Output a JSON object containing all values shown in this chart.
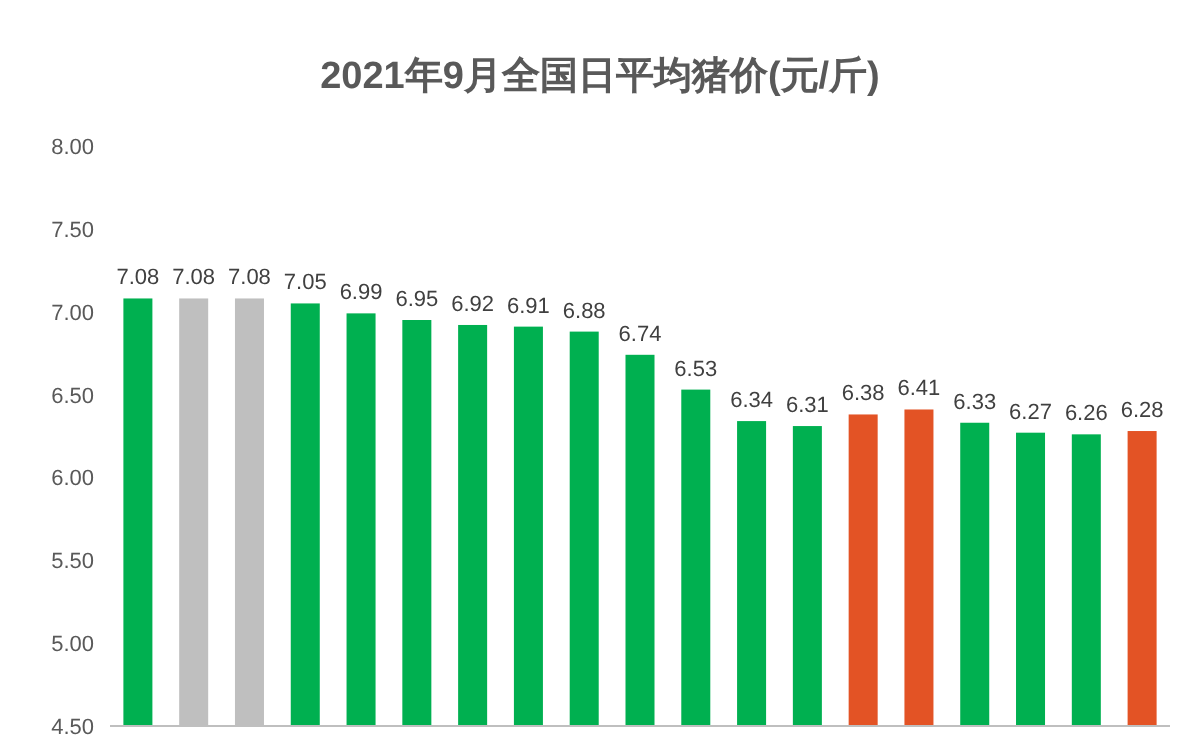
{
  "chart_data": {
    "type": "bar",
    "title": "2021年9月全国日平均猪价(元/斤)",
    "categories": [
      null,
      null,
      null,
      null,
      null,
      null,
      null,
      null,
      null,
      null,
      null,
      null,
      null,
      null,
      null,
      null,
      null,
      null,
      null
    ],
    "values": [
      7.08,
      7.08,
      7.08,
      7.05,
      6.99,
      6.95,
      6.92,
      6.91,
      6.88,
      6.74,
      6.53,
      6.34,
      6.31,
      6.38,
      6.41,
      6.33,
      6.27,
      6.26,
      6.28
    ],
    "colors": [
      "#00b050",
      "#bfbfbf",
      "#bfbfbf",
      "#00b050",
      "#00b050",
      "#00b050",
      "#00b050",
      "#00b050",
      "#00b050",
      "#00b050",
      "#00b050",
      "#00b050",
      "#00b050",
      "#e35325",
      "#e35325",
      "#00b050",
      "#00b050",
      "#00b050",
      "#e35325"
    ],
    "ylim": [
      4.5,
      8
    ],
    "yticks": [
      {
        "value": 4.5,
        "label": "4.50"
      },
      {
        "value": 5,
        "label": "5.00"
      },
      {
        "value": 5.5,
        "label": "5.50"
      },
      {
        "value": 6,
        "label": "6.00"
      },
      {
        "value": 6.5,
        "label": "6.50"
      },
      {
        "value": 7,
        "label": "7.00"
      },
      {
        "value": 7.5,
        "label": "7.50"
      },
      {
        "value": 8,
        "label": "8.00"
      }
    ],
    "data_labels": true
  }
}
